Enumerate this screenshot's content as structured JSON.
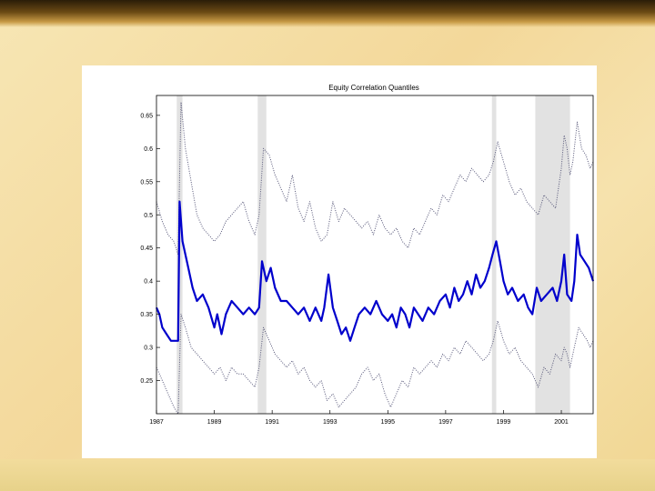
{
  "chart_data": {
    "type": "line",
    "title": "Equity Correlation Quantiles",
    "xlabel": "",
    "ylabel": "",
    "xlim": [
      1987,
      2002.1
    ],
    "ylim": [
      0.2,
      0.68
    ],
    "x_ticks": [
      1987,
      1989,
      1991,
      1993,
      1995,
      1997,
      1999,
      2001
    ],
    "y_ticks": [
      0.25,
      0.3,
      0.35,
      0.4,
      0.45,
      0.5,
      0.55,
      0.6,
      0.65
    ],
    "shaded_periods": [
      [
        1987.7,
        1987.9
      ],
      [
        1990.5,
        1990.8
      ],
      [
        1998.6,
        1998.75
      ],
      [
        2000.1,
        2001.3
      ]
    ],
    "series": [
      {
        "line_style": "dotted",
        "color": "#555577",
        "points": [
          [
            1987.0,
            0.52
          ],
          [
            1987.2,
            0.49
          ],
          [
            1987.4,
            0.47
          ],
          [
            1987.6,
            0.46
          ],
          [
            1987.75,
            0.44
          ],
          [
            1987.85,
            0.67
          ],
          [
            1988.0,
            0.6
          ],
          [
            1988.2,
            0.55
          ],
          [
            1988.4,
            0.5
          ],
          [
            1988.6,
            0.48
          ],
          [
            1988.8,
            0.47
          ],
          [
            1989.0,
            0.46
          ],
          [
            1989.2,
            0.47
          ],
          [
            1989.4,
            0.49
          ],
          [
            1989.6,
            0.5
          ],
          [
            1989.8,
            0.51
          ],
          [
            1990.0,
            0.52
          ],
          [
            1990.2,
            0.49
          ],
          [
            1990.4,
            0.47
          ],
          [
            1990.55,
            0.5
          ],
          [
            1990.7,
            0.6
          ],
          [
            1990.9,
            0.59
          ],
          [
            1991.1,
            0.56
          ],
          [
            1991.3,
            0.54
          ],
          [
            1991.5,
            0.52
          ],
          [
            1991.7,
            0.56
          ],
          [
            1991.9,
            0.51
          ],
          [
            1992.1,
            0.49
          ],
          [
            1992.3,
            0.52
          ],
          [
            1992.5,
            0.48
          ],
          [
            1992.7,
            0.46
          ],
          [
            1992.9,
            0.47
          ],
          [
            1993.1,
            0.52
          ],
          [
            1993.3,
            0.49
          ],
          [
            1993.5,
            0.51
          ],
          [
            1993.7,
            0.5
          ],
          [
            1993.9,
            0.49
          ],
          [
            1994.1,
            0.48
          ],
          [
            1994.3,
            0.49
          ],
          [
            1994.5,
            0.47
          ],
          [
            1994.7,
            0.5
          ],
          [
            1994.9,
            0.48
          ],
          [
            1995.1,
            0.47
          ],
          [
            1995.3,
            0.48
          ],
          [
            1995.5,
            0.46
          ],
          [
            1995.7,
            0.45
          ],
          [
            1995.9,
            0.48
          ],
          [
            1996.1,
            0.47
          ],
          [
            1996.3,
            0.49
          ],
          [
            1996.5,
            0.51
          ],
          [
            1996.7,
            0.5
          ],
          [
            1996.9,
            0.53
          ],
          [
            1997.1,
            0.52
          ],
          [
            1997.3,
            0.54
          ],
          [
            1997.5,
            0.56
          ],
          [
            1997.7,
            0.55
          ],
          [
            1997.9,
            0.57
          ],
          [
            1998.1,
            0.56
          ],
          [
            1998.3,
            0.55
          ],
          [
            1998.5,
            0.56
          ],
          [
            1998.65,
            0.58
          ],
          [
            1998.8,
            0.61
          ],
          [
            1999.0,
            0.58
          ],
          [
            1999.2,
            0.55
          ],
          [
            1999.4,
            0.53
          ],
          [
            1999.6,
            0.54
          ],
          [
            1999.8,
            0.52
          ],
          [
            2000.0,
            0.51
          ],
          [
            2000.2,
            0.5
          ],
          [
            2000.4,
            0.53
          ],
          [
            2000.6,
            0.52
          ],
          [
            2000.8,
            0.51
          ],
          [
            2001.0,
            0.57
          ],
          [
            2001.1,
            0.62
          ],
          [
            2001.2,
            0.6
          ],
          [
            2001.3,
            0.56
          ],
          [
            2001.4,
            0.58
          ],
          [
            2001.55,
            0.64
          ],
          [
            2001.7,
            0.6
          ],
          [
            2001.85,
            0.59
          ],
          [
            2002.0,
            0.57
          ],
          [
            2002.1,
            0.58
          ]
        ]
      },
      {
        "line_style": "solid",
        "color": "#0000cc",
        "points": [
          [
            1987.0,
            0.36
          ],
          [
            1987.1,
            0.35
          ],
          [
            1987.2,
            0.33
          ],
          [
            1987.35,
            0.32
          ],
          [
            1987.5,
            0.31
          ],
          [
            1987.65,
            0.31
          ],
          [
            1987.75,
            0.31
          ],
          [
            1987.8,
            0.52
          ],
          [
            1987.9,
            0.46
          ],
          [
            1988.0,
            0.44
          ],
          [
            1988.1,
            0.42
          ],
          [
            1988.25,
            0.39
          ],
          [
            1988.4,
            0.37
          ],
          [
            1988.6,
            0.38
          ],
          [
            1988.8,
            0.36
          ],
          [
            1989.0,
            0.33
          ],
          [
            1989.1,
            0.35
          ],
          [
            1989.25,
            0.32
          ],
          [
            1989.4,
            0.35
          ],
          [
            1989.6,
            0.37
          ],
          [
            1989.8,
            0.36
          ],
          [
            1990.0,
            0.35
          ],
          [
            1990.2,
            0.36
          ],
          [
            1990.4,
            0.35
          ],
          [
            1990.55,
            0.36
          ],
          [
            1990.65,
            0.43
          ],
          [
            1990.8,
            0.4
          ],
          [
            1990.95,
            0.42
          ],
          [
            1991.1,
            0.39
          ],
          [
            1991.3,
            0.37
          ],
          [
            1991.5,
            0.37
          ],
          [
            1991.7,
            0.36
          ],
          [
            1991.9,
            0.35
          ],
          [
            1992.1,
            0.36
          ],
          [
            1992.3,
            0.34
          ],
          [
            1992.5,
            0.36
          ],
          [
            1992.7,
            0.34
          ],
          [
            1992.8,
            0.36
          ],
          [
            1992.95,
            0.41
          ],
          [
            1993.1,
            0.36
          ],
          [
            1993.25,
            0.34
          ],
          [
            1993.4,
            0.32
          ],
          [
            1993.55,
            0.33
          ],
          [
            1993.7,
            0.31
          ],
          [
            1993.85,
            0.33
          ],
          [
            1994.0,
            0.35
          ],
          [
            1994.2,
            0.36
          ],
          [
            1994.4,
            0.35
          ],
          [
            1994.6,
            0.37
          ],
          [
            1994.8,
            0.35
          ],
          [
            1995.0,
            0.34
          ],
          [
            1995.15,
            0.35
          ],
          [
            1995.3,
            0.33
          ],
          [
            1995.45,
            0.36
          ],
          [
            1995.6,
            0.35
          ],
          [
            1995.75,
            0.33
          ],
          [
            1995.9,
            0.36
          ],
          [
            1996.05,
            0.35
          ],
          [
            1996.2,
            0.34
          ],
          [
            1996.4,
            0.36
          ],
          [
            1996.6,
            0.35
          ],
          [
            1996.8,
            0.37
          ],
          [
            1997.0,
            0.38
          ],
          [
            1997.15,
            0.36
          ],
          [
            1997.3,
            0.39
          ],
          [
            1997.45,
            0.37
          ],
          [
            1997.6,
            0.38
          ],
          [
            1997.75,
            0.4
          ],
          [
            1997.9,
            0.38
          ],
          [
            1998.05,
            0.41
          ],
          [
            1998.2,
            0.39
          ],
          [
            1998.35,
            0.4
          ],
          [
            1998.5,
            0.42
          ],
          [
            1998.62,
            0.44
          ],
          [
            1998.75,
            0.46
          ],
          [
            1998.88,
            0.43
          ],
          [
            1999.0,
            0.4
          ],
          [
            1999.15,
            0.38
          ],
          [
            1999.3,
            0.39
          ],
          [
            1999.5,
            0.37
          ],
          [
            1999.7,
            0.38
          ],
          [
            1999.85,
            0.36
          ],
          [
            2000.0,
            0.35
          ],
          [
            2000.15,
            0.39
          ],
          [
            2000.3,
            0.37
          ],
          [
            2000.5,
            0.38
          ],
          [
            2000.7,
            0.39
          ],
          [
            2000.85,
            0.37
          ],
          [
            2001.0,
            0.4
          ],
          [
            2001.1,
            0.44
          ],
          [
            2001.2,
            0.38
          ],
          [
            2001.35,
            0.37
          ],
          [
            2001.45,
            0.4
          ],
          [
            2001.55,
            0.47
          ],
          [
            2001.65,
            0.44
          ],
          [
            2001.8,
            0.43
          ],
          [
            2001.95,
            0.42
          ],
          [
            2002.1,
            0.4
          ]
        ]
      },
      {
        "line_style": "dotted",
        "color": "#555577",
        "points": [
          [
            1987.0,
            0.27
          ],
          [
            1987.2,
            0.25
          ],
          [
            1987.4,
            0.23
          ],
          [
            1987.6,
            0.21
          ],
          [
            1987.75,
            0.2
          ],
          [
            1987.85,
            0.35
          ],
          [
            1988.0,
            0.33
          ],
          [
            1988.2,
            0.3
          ],
          [
            1988.4,
            0.29
          ],
          [
            1988.6,
            0.28
          ],
          [
            1988.8,
            0.27
          ],
          [
            1989.0,
            0.26
          ],
          [
            1989.2,
            0.27
          ],
          [
            1989.4,
            0.25
          ],
          [
            1989.6,
            0.27
          ],
          [
            1989.8,
            0.26
          ],
          [
            1990.0,
            0.26
          ],
          [
            1990.2,
            0.25
          ],
          [
            1990.4,
            0.24
          ],
          [
            1990.55,
            0.27
          ],
          [
            1990.7,
            0.33
          ],
          [
            1990.9,
            0.31
          ],
          [
            1991.1,
            0.29
          ],
          [
            1991.3,
            0.28
          ],
          [
            1991.5,
            0.27
          ],
          [
            1991.7,
            0.28
          ],
          [
            1991.9,
            0.26
          ],
          [
            1992.1,
            0.27
          ],
          [
            1992.3,
            0.25
          ],
          [
            1992.5,
            0.24
          ],
          [
            1992.7,
            0.25
          ],
          [
            1992.9,
            0.22
          ],
          [
            1993.1,
            0.23
          ],
          [
            1993.3,
            0.21
          ],
          [
            1993.5,
            0.22
          ],
          [
            1993.7,
            0.23
          ],
          [
            1993.9,
            0.24
          ],
          [
            1994.1,
            0.26
          ],
          [
            1994.3,
            0.27
          ],
          [
            1994.5,
            0.25
          ],
          [
            1994.7,
            0.26
          ],
          [
            1994.9,
            0.23
          ],
          [
            1995.1,
            0.21
          ],
          [
            1995.3,
            0.23
          ],
          [
            1995.5,
            0.25
          ],
          [
            1995.7,
            0.24
          ],
          [
            1995.9,
            0.27
          ],
          [
            1996.1,
            0.26
          ],
          [
            1996.3,
            0.27
          ],
          [
            1996.5,
            0.28
          ],
          [
            1996.7,
            0.27
          ],
          [
            1996.9,
            0.29
          ],
          [
            1997.1,
            0.28
          ],
          [
            1997.3,
            0.3
          ],
          [
            1997.5,
            0.29
          ],
          [
            1997.7,
            0.31
          ],
          [
            1997.9,
            0.3
          ],
          [
            1998.1,
            0.29
          ],
          [
            1998.3,
            0.28
          ],
          [
            1998.5,
            0.29
          ],
          [
            1998.65,
            0.31
          ],
          [
            1998.8,
            0.34
          ],
          [
            1999.0,
            0.31
          ],
          [
            1999.2,
            0.29
          ],
          [
            1999.4,
            0.3
          ],
          [
            1999.6,
            0.28
          ],
          [
            1999.8,
            0.27
          ],
          [
            2000.0,
            0.26
          ],
          [
            2000.2,
            0.24
          ],
          [
            2000.4,
            0.27
          ],
          [
            2000.6,
            0.26
          ],
          [
            2000.8,
            0.29
          ],
          [
            2001.0,
            0.28
          ],
          [
            2001.1,
            0.3
          ],
          [
            2001.2,
            0.29
          ],
          [
            2001.3,
            0.27
          ],
          [
            2001.45,
            0.3
          ],
          [
            2001.6,
            0.33
          ],
          [
            2001.75,
            0.32
          ],
          [
            2001.9,
            0.31
          ],
          [
            2002.0,
            0.3
          ],
          [
            2002.1,
            0.31
          ]
        ]
      }
    ]
  }
}
